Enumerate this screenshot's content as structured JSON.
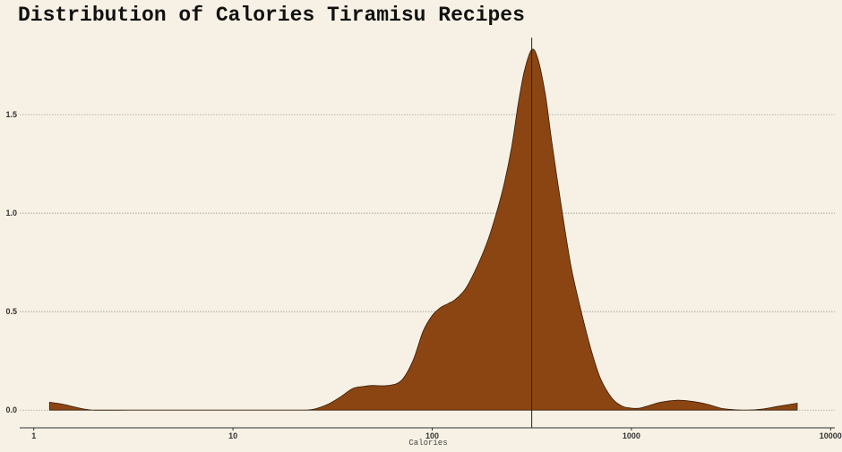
{
  "chart_data": {
    "type": "area",
    "title": "Distribution of Calories Tiramisu Recipes",
    "xlabel": "Calories",
    "ylabel": "",
    "x_scale": "log10",
    "xlim": [
      0.85,
      10500
    ],
    "ylim": [
      -0.09,
      1.9
    ],
    "x_ticks": [
      1,
      10,
      100,
      1000,
      10000
    ],
    "x_tick_labels": [
      "1",
      "10",
      "100",
      "1000",
      "10000"
    ],
    "y_ticks": [
      0.0,
      0.5,
      1.0,
      1.5
    ],
    "y_tick_labels": [
      "0.0",
      "0.5",
      "1.0",
      "1.5"
    ],
    "grid": "horizontal-dotted",
    "vline_x": 316,
    "fill_color": "#8b4513",
    "line_color": "#222222",
    "background": "#f6f1e4",
    "series": [
      {
        "x": [
          1.2,
          1.4,
          1.7,
          2,
          3,
          5,
          10,
          20,
          25,
          30,
          35,
          40,
          45,
          50,
          60,
          70,
          80,
          90,
          100,
          110,
          120,
          130,
          140,
          150,
          170,
          190,
          210,
          230,
          250,
          270,
          290,
          316,
          340,
          370,
          400,
          450,
          500,
          560,
          630,
          700,
          800,
          900,
          1000,
          1100,
          1200,
          1400,
          1700,
          2000,
          2400,
          2800,
          3200,
          3800,
          4500,
          5500,
          6800
        ],
        "y": [
          0.04,
          0.03,
          0.01,
          0.0,
          0.0,
          0.0,
          0.0,
          0.0,
          0.003,
          0.03,
          0.07,
          0.11,
          0.12,
          0.125,
          0.125,
          0.15,
          0.25,
          0.4,
          0.48,
          0.52,
          0.54,
          0.56,
          0.59,
          0.63,
          0.74,
          0.86,
          1.0,
          1.15,
          1.33,
          1.55,
          1.72,
          1.83,
          1.78,
          1.6,
          1.35,
          1.0,
          0.72,
          0.5,
          0.3,
          0.16,
          0.06,
          0.02,
          0.01,
          0.01,
          0.02,
          0.04,
          0.05,
          0.045,
          0.03,
          0.01,
          0.003,
          0.0,
          0.005,
          0.02,
          0.035
        ]
      }
    ]
  }
}
